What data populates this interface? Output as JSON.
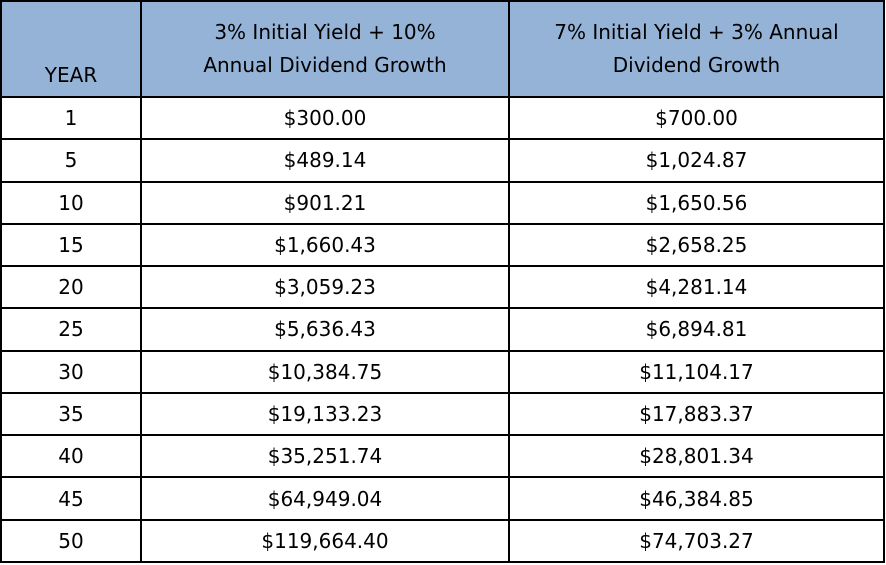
{
  "table": {
    "headers": {
      "year": "YEAR",
      "scenario_a": [
        "3% Initial Yield + 10%",
        "Annual Dividend Growth"
      ],
      "scenario_b": [
        "7% Initial Yield + 3% Annual",
        "Dividend Growth"
      ]
    },
    "rows": [
      [
        "1",
        "$300.00",
        "$700.00"
      ],
      [
        "5",
        "$489.14",
        "$1,024.87"
      ],
      [
        "10",
        "$901.21",
        "$1,650.56"
      ],
      [
        "15",
        "$1,660.43",
        "$2,658.25"
      ],
      [
        "20",
        "$3,059.23",
        "$4,281.14"
      ],
      [
        "25",
        "$5,636.43",
        "$6,894.81"
      ],
      [
        "30",
        "$10,384.75",
        "$11,104.17"
      ],
      [
        "35",
        "$19,133.23",
        "$17,883.37"
      ],
      [
        "40",
        "$35,251.74",
        "$28,801.34"
      ],
      [
        "45",
        "$64,949.04",
        "$46,384.85"
      ],
      [
        "50",
        "$119,664.40",
        "$74,703.27"
      ]
    ]
  },
  "colors": {
    "header_background": "#95b3d7",
    "border": "#000000"
  }
}
